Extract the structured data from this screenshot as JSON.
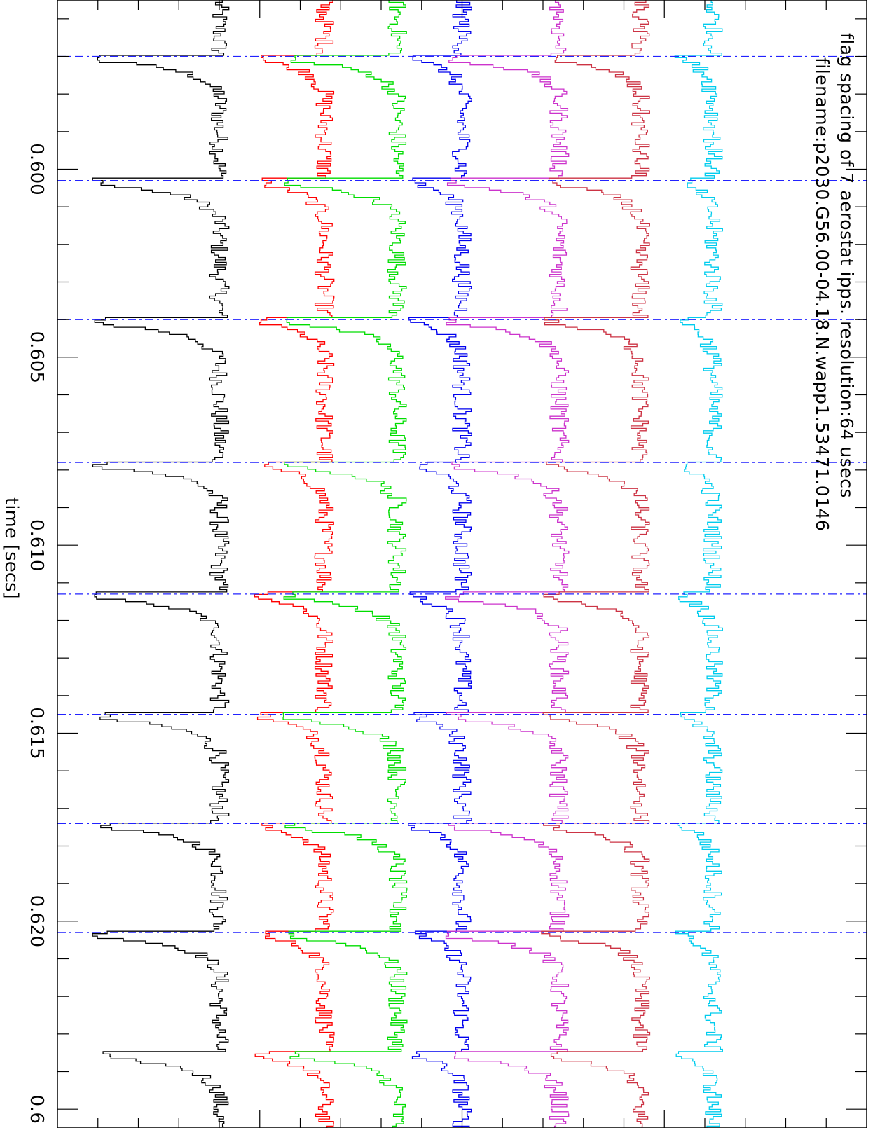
{
  "chart_data": {
    "type": "line",
    "title": "flag spacing of 7 aerostat ipps. resolution:64 usecs",
    "subtitle": "filename:p2030.G56.00-04.18.N.wapp1.53471.0146",
    "xlabel": "time [secs]",
    "ylabel": "",
    "orientation": "rotated-90-clockwise",
    "xlim": [
      0.5955,
      0.6255
    ],
    "x_ticks": [
      {
        "value": 0.6,
        "label": "0.600"
      },
      {
        "value": 0.605,
        "label": "0.605"
      },
      {
        "value": 0.61,
        "label": "0.610"
      },
      {
        "value": 0.615,
        "label": "0.615"
      },
      {
        "value": 0.62,
        "label": "0.620"
      },
      {
        "value": 0.625,
        "label": "0.6"
      }
    ],
    "minor_tick_step": 0.001,
    "grid": false,
    "legend": "none",
    "step_sec": 6.4e-05,
    "flag_times": [
      0.597,
      0.6003,
      0.604,
      0.6078,
      0.6113,
      0.6145,
      0.6174,
      0.6203
    ],
    "extra_pulse": 0.6235,
    "series": [
      {
        "color": "#000000",
        "baseline": 0.2,
        "noise": 0.012,
        "pulse": 0.145
      },
      {
        "color": "#ff0000",
        "baseline": 0.33,
        "noise": 0.012,
        "pulse": 0.075
      },
      {
        "color": "#00dd00",
        "baseline": 0.42,
        "noise": 0.012,
        "pulse": 0.13
      },
      {
        "color": "#0000ee",
        "baseline": 0.5,
        "noise": 0.012,
        "pulse": 0.055
      },
      {
        "color": "#cc33cc",
        "baseline": 0.62,
        "noise": 0.012,
        "pulse": 0.13
      },
      {
        "color": "#cc3344",
        "baseline": 0.72,
        "noise": 0.012,
        "pulse": 0.11
      },
      {
        "color": "#00ccee",
        "baseline": 0.81,
        "noise": 0.012,
        "pulse": 0.035
      }
    ],
    "flag_line_color": "#2222ff"
  }
}
